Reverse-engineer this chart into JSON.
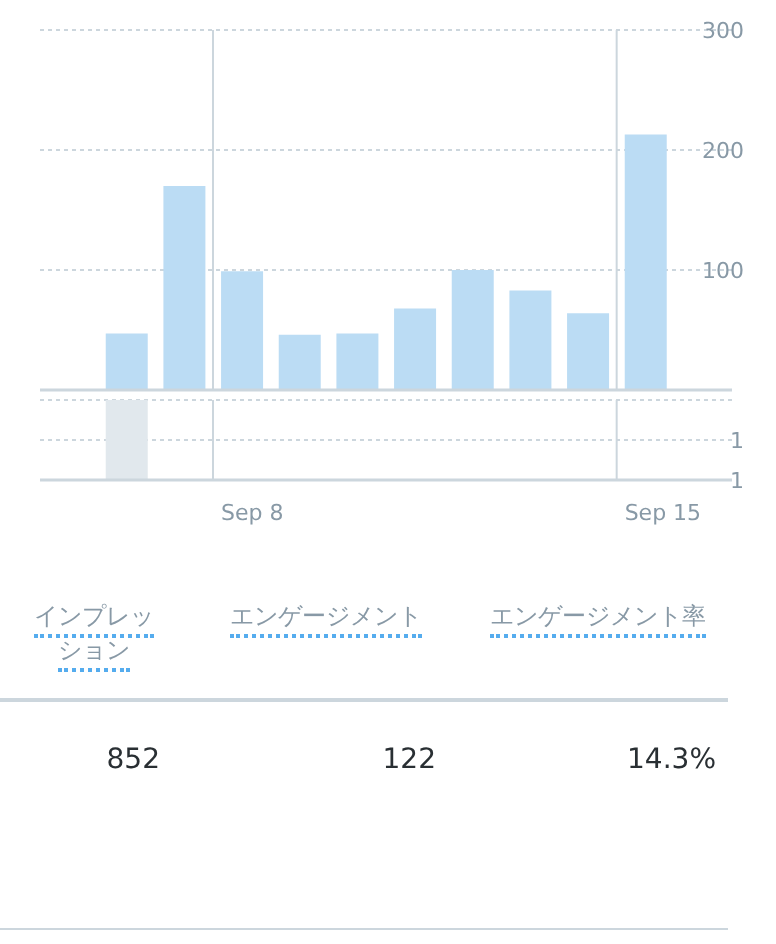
{
  "chart_data": [
    {
      "type": "bar",
      "categories": [
        null,
        null,
        null,
        null,
        null,
        null,
        null,
        null,
        null,
        null,
        null,
        null
      ],
      "values": [
        null,
        47,
        170,
        99,
        46,
        47,
        68,
        100,
        83,
        64,
        213,
        null
      ],
      "color": "#bbdcf4",
      "ylim": [
        0,
        300
      ],
      "yticks": [
        100,
        200,
        300
      ],
      "grid": true,
      "tick_labels": "y"
    },
    {
      "type": "bar",
      "categories": [
        null,
        null,
        null,
        "Sep 8",
        null,
        null,
        null,
        null,
        null,
        null,
        "Sep 15",
        null
      ],
      "values": [
        null,
        1,
        null,
        null,
        null,
        null,
        null,
        null,
        null,
        null,
        null,
        null
      ],
      "color": "#e1e8ed",
      "ylim": [
        1,
        0
      ],
      "yticks": [
        {
          "value": 0.5,
          "label": "1"
        },
        1
      ],
      "grid": true
    },
    {
      "type": "other",
      "categories": [
        "インプレッション",
        "エンゲージメント",
        "エンゲージメント率"
      ],
      "values": [
        852,
        122,
        14.3
      ],
      "value_labels": [
        "852",
        "122",
        "14.3%"
      ]
    }
  ]
}
